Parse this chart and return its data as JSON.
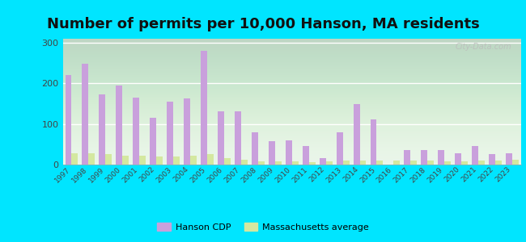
{
  "title": "Number of permits per 10,000 Hanson, MA residents",
  "years": [
    1997,
    1998,
    1999,
    2000,
    2001,
    2002,
    2003,
    2004,
    2005,
    2006,
    2007,
    2008,
    2009,
    2010,
    2011,
    2012,
    2013,
    2014,
    2015,
    2016,
    2017,
    2018,
    2019,
    2020,
    2021,
    2022,
    2023
  ],
  "hanson": [
    220,
    248,
    172,
    195,
    165,
    115,
    155,
    163,
    280,
    132,
    132,
    80,
    58,
    60,
    45,
    15,
    80,
    150,
    112,
    0,
    35,
    35,
    35,
    28,
    46,
    25,
    28
  ],
  "ma_avg": [
    28,
    28,
    25,
    22,
    22,
    20,
    20,
    22,
    25,
    15,
    12,
    8,
    8,
    8,
    5,
    8,
    10,
    10,
    10,
    10,
    10,
    10,
    8,
    8,
    10,
    10,
    12
  ],
  "hanson_color": "#c9a0dc",
  "ma_avg_color": "#d4e8a0",
  "outer_background": "#00e5ff",
  "ylim": [
    0,
    310
  ],
  "yticks": [
    0,
    100,
    200,
    300
  ],
  "bar_width": 0.38,
  "title_fontsize": 13,
  "watermark": "City-Data.com",
  "legend_hanson": "Hanson CDP",
  "legend_ma": "Massachusetts average"
}
